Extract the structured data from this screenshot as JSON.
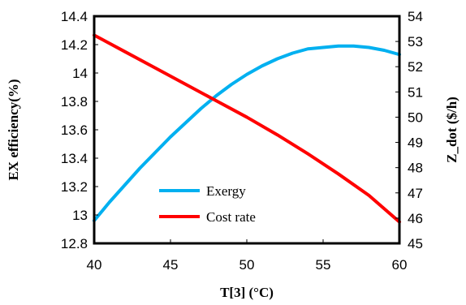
{
  "chart_data": {
    "type": "line",
    "title": "",
    "xlabel": "T[3] (°C)",
    "ylabel_left": "EX efficiency(%)",
    "ylabel_right": "Z_dot ($/h)",
    "xlim": [
      40,
      60
    ],
    "ylim_left": [
      12.8,
      14.4
    ],
    "ylim_right": [
      45,
      54
    ],
    "x_ticks": [
      "40",
      "45",
      "50",
      "55",
      "60"
    ],
    "y_left_ticks": [
      "12.8",
      "13",
      "13.2",
      "13.4",
      "13.6",
      "13.8",
      "14",
      "14.2",
      "14.4"
    ],
    "y_right_ticks": [
      "45",
      "46",
      "47",
      "48",
      "49",
      "50",
      "51",
      "52",
      "53",
      "54"
    ],
    "grid": false,
    "legend_position": "lower-left",
    "series": [
      {
        "name": "Exergy",
        "axis": "left",
        "color": "#00b0f0",
        "x": [
          40,
          41,
          42,
          43,
          44,
          45,
          46,
          47,
          48,
          49,
          50,
          51,
          52,
          53,
          54,
          55,
          56,
          57,
          58,
          59,
          60
        ],
        "y": [
          12.96,
          13.09,
          13.21,
          13.33,
          13.44,
          13.55,
          13.65,
          13.75,
          13.84,
          13.92,
          13.99,
          14.05,
          14.1,
          14.14,
          14.17,
          14.18,
          14.19,
          14.19,
          14.18,
          14.16,
          14.13
        ]
      },
      {
        "name": "Cost rate",
        "axis": "right",
        "color": "#ff0000",
        "x": [
          40,
          42,
          44,
          46,
          48,
          50,
          52,
          54,
          56,
          58,
          60
        ],
        "y": [
          53.25,
          52.6,
          51.95,
          51.3,
          50.65,
          50.0,
          49.3,
          48.55,
          47.75,
          46.9,
          45.85
        ]
      }
    ]
  }
}
